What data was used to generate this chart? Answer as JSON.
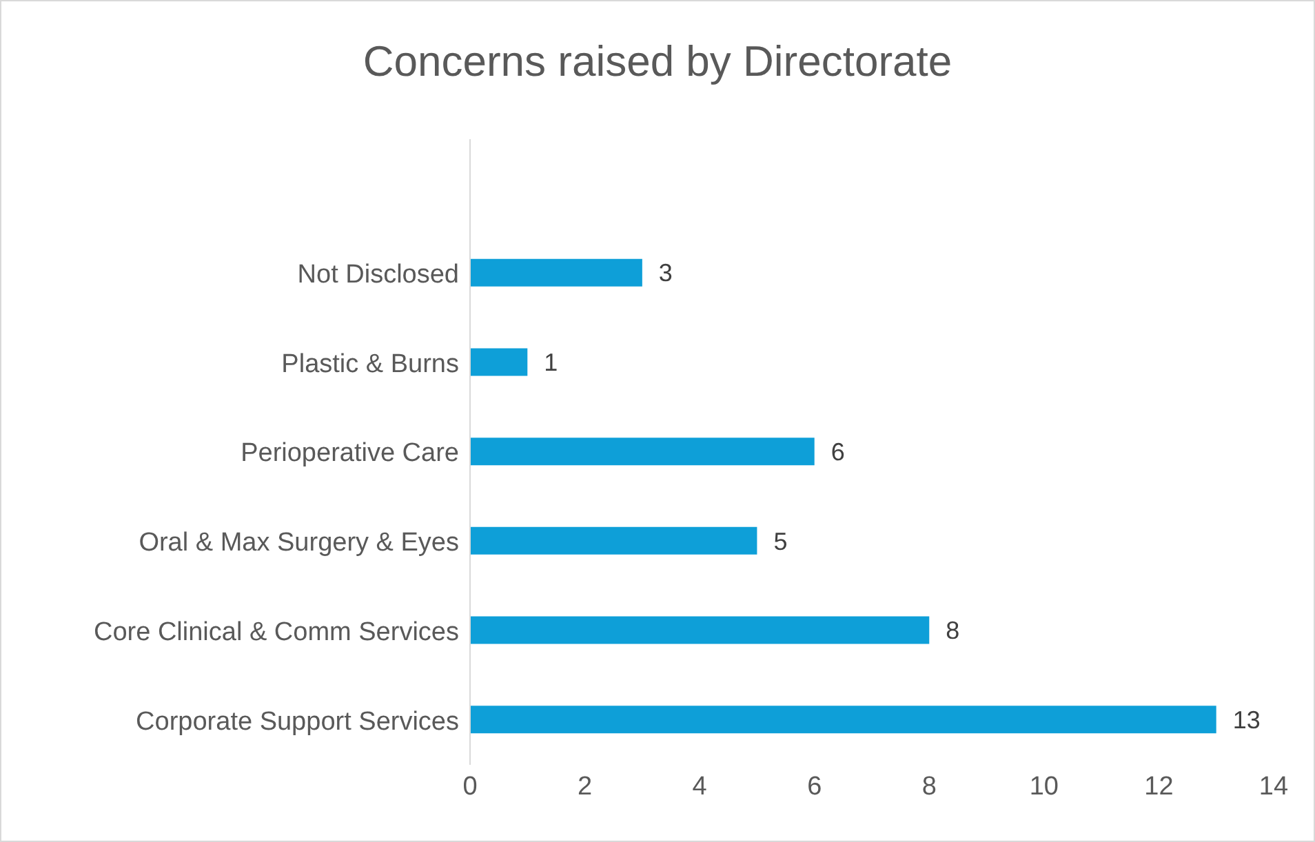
{
  "chart_data": {
    "type": "bar",
    "orientation": "horizontal",
    "title": "Concerns raised by Directorate",
    "categories": [
      null,
      "Not Disclosed",
      "Plastic & Burns",
      "Perioperative Care",
      "Oral & Max Surgery & Eyes",
      "Core Clinical & Comm Services",
      "Corporate Support Services"
    ],
    "values": [
      null,
      3,
      1,
      6,
      5,
      8,
      13
    ],
    "color": "#0e9fd8",
    "xlim": [
      0,
      14
    ],
    "xticks": [
      0,
      2,
      4,
      6,
      8,
      10,
      12,
      14
    ],
    "grid": false,
    "data_labels": true
  }
}
